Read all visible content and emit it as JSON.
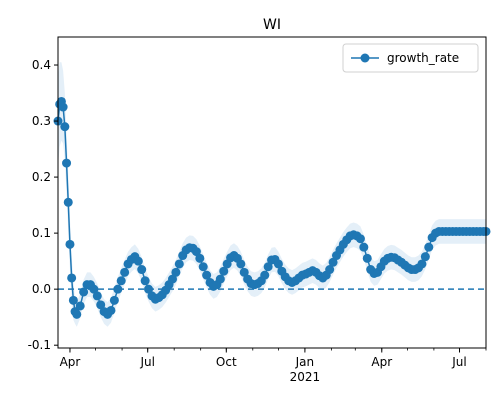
{
  "chart_data": {
    "type": "line",
    "title": "WI",
    "xlabel": "",
    "ylabel": "",
    "x_axis": {
      "type": "date",
      "range": [
        "2020-03-18",
        "2021-08-01"
      ],
      "ticks": [
        {
          "date": "2020-04-01",
          "label": "Apr"
        },
        {
          "date": "2020-07-01",
          "label": "Jul"
        },
        {
          "date": "2020-10-01",
          "label": "Oct"
        },
        {
          "date": "2021-01-01",
          "label": "Jan",
          "sublabel": "2021"
        },
        {
          "date": "2021-04-01",
          "label": "Apr"
        },
        {
          "date": "2021-07-01",
          "label": "Jul"
        }
      ]
    },
    "ylim": [
      -0.105,
      0.45
    ],
    "yticks": [
      "-0.1",
      "0.0",
      "0.1",
      "0.2",
      "0.3",
      "0.4"
    ],
    "reference_line": {
      "y": 0.0,
      "style": "dashed",
      "color": "#1f77b4"
    },
    "legend": {
      "position": "top-right",
      "entries": [
        "growth_rate"
      ]
    },
    "colors": {
      "series": "#1f77b4",
      "band": "#dbe9f6",
      "axis": "#000000"
    },
    "series": [
      {
        "name": "growth_rate",
        "marker": "circle",
        "points": [
          [
            "2020-03-18",
            0.3
          ],
          [
            "2020-03-20",
            0.33
          ],
          [
            "2020-03-22",
            0.335
          ],
          [
            "2020-03-24",
            0.325
          ],
          [
            "2020-03-26",
            0.29
          ],
          [
            "2020-03-28",
            0.225
          ],
          [
            "2020-03-30",
            0.155
          ],
          [
            "2020-04-01",
            0.08
          ],
          [
            "2020-04-03",
            0.02
          ],
          [
            "2020-04-05",
            -0.02
          ],
          [
            "2020-04-07",
            -0.04
          ],
          [
            "2020-04-09",
            -0.045
          ],
          [
            "2020-04-13",
            -0.03
          ],
          [
            "2020-04-17",
            -0.005
          ],
          [
            "2020-04-21",
            0.008
          ],
          [
            "2020-04-25",
            0.008
          ],
          [
            "2020-04-29",
            0.0
          ],
          [
            "2020-05-03",
            -0.012
          ],
          [
            "2020-05-07",
            -0.028
          ],
          [
            "2020-05-11",
            -0.04
          ],
          [
            "2020-05-15",
            -0.045
          ],
          [
            "2020-05-19",
            -0.038
          ],
          [
            "2020-05-23",
            -0.02
          ],
          [
            "2020-05-27",
            0.0
          ],
          [
            "2020-05-31",
            0.015
          ],
          [
            "2020-06-04",
            0.03
          ],
          [
            "2020-06-08",
            0.045
          ],
          [
            "2020-06-12",
            0.053
          ],
          [
            "2020-06-16",
            0.058
          ],
          [
            "2020-06-20",
            0.05
          ],
          [
            "2020-06-24",
            0.035
          ],
          [
            "2020-06-28",
            0.015
          ],
          [
            "2020-07-02",
            0.0
          ],
          [
            "2020-07-06",
            -0.012
          ],
          [
            "2020-07-10",
            -0.018
          ],
          [
            "2020-07-14",
            -0.015
          ],
          [
            "2020-07-18",
            -0.01
          ],
          [
            "2020-07-22",
            -0.002
          ],
          [
            "2020-07-26",
            0.008
          ],
          [
            "2020-07-30",
            0.018
          ],
          [
            "2020-08-03",
            0.03
          ],
          [
            "2020-08-07",
            0.045
          ],
          [
            "2020-08-11",
            0.06
          ],
          [
            "2020-08-15",
            0.07
          ],
          [
            "2020-08-19",
            0.074
          ],
          [
            "2020-08-23",
            0.073
          ],
          [
            "2020-08-27",
            0.067
          ],
          [
            "2020-08-31",
            0.055
          ],
          [
            "2020-09-04",
            0.04
          ],
          [
            "2020-09-08",
            0.025
          ],
          [
            "2020-09-12",
            0.012
          ],
          [
            "2020-09-16",
            0.005
          ],
          [
            "2020-09-20",
            0.008
          ],
          [
            "2020-09-24",
            0.018
          ],
          [
            "2020-09-28",
            0.032
          ],
          [
            "2020-10-02",
            0.045
          ],
          [
            "2020-10-06",
            0.056
          ],
          [
            "2020-10-10",
            0.06
          ],
          [
            "2020-10-14",
            0.055
          ],
          [
            "2020-10-18",
            0.045
          ],
          [
            "2020-10-22",
            0.03
          ],
          [
            "2020-10-26",
            0.018
          ],
          [
            "2020-10-30",
            0.01
          ],
          [
            "2020-11-03",
            0.008
          ],
          [
            "2020-11-07",
            0.01
          ],
          [
            "2020-11-11",
            0.015
          ],
          [
            "2020-11-15",
            0.025
          ],
          [
            "2020-11-19",
            0.04
          ],
          [
            "2020-11-23",
            0.052
          ],
          [
            "2020-11-27",
            0.053
          ],
          [
            "2020-12-01",
            0.045
          ],
          [
            "2020-12-05",
            0.032
          ],
          [
            "2020-12-09",
            0.022
          ],
          [
            "2020-12-13",
            0.015
          ],
          [
            "2020-12-17",
            0.012
          ],
          [
            "2020-12-21",
            0.015
          ],
          [
            "2020-12-25",
            0.02
          ],
          [
            "2020-12-29",
            0.025
          ],
          [
            "2021-01-02",
            0.027
          ],
          [
            "2021-01-06",
            0.03
          ],
          [
            "2021-01-10",
            0.033
          ],
          [
            "2021-01-14",
            0.03
          ],
          [
            "2021-01-18",
            0.024
          ],
          [
            "2021-01-22",
            0.02
          ],
          [
            "2021-01-26",
            0.025
          ],
          [
            "2021-01-30",
            0.035
          ],
          [
            "2021-02-03",
            0.048
          ],
          [
            "2021-02-07",
            0.06
          ],
          [
            "2021-02-11",
            0.07
          ],
          [
            "2021-02-15",
            0.08
          ],
          [
            "2021-02-19",
            0.088
          ],
          [
            "2021-02-23",
            0.095
          ],
          [
            "2021-02-27",
            0.097
          ],
          [
            "2021-03-03",
            0.095
          ],
          [
            "2021-03-07",
            0.09
          ],
          [
            "2021-03-11",
            0.075
          ],
          [
            "2021-03-15",
            0.055
          ],
          [
            "2021-03-19",
            0.035
          ],
          [
            "2021-03-23",
            0.028
          ],
          [
            "2021-03-27",
            0.03
          ],
          [
            "2021-03-31",
            0.04
          ],
          [
            "2021-04-04",
            0.05
          ],
          [
            "2021-04-08",
            0.055
          ],
          [
            "2021-04-12",
            0.057
          ],
          [
            "2021-04-16",
            0.056
          ],
          [
            "2021-04-20",
            0.052
          ],
          [
            "2021-04-24",
            0.048
          ],
          [
            "2021-04-28",
            0.043
          ],
          [
            "2021-05-02",
            0.038
          ],
          [
            "2021-05-06",
            0.035
          ],
          [
            "2021-05-10",
            0.035
          ],
          [
            "2021-05-14",
            0.038
          ],
          [
            "2021-05-18",
            0.045
          ],
          [
            "2021-05-22",
            0.058
          ],
          [
            "2021-05-26",
            0.075
          ],
          [
            "2021-05-30",
            0.092
          ],
          [
            "2021-06-03",
            0.1
          ],
          [
            "2021-06-07",
            0.103
          ],
          [
            "2021-06-11",
            0.103
          ],
          [
            "2021-06-15",
            0.103
          ],
          [
            "2021-06-19",
            0.103
          ],
          [
            "2021-06-23",
            0.103
          ],
          [
            "2021-06-27",
            0.103
          ],
          [
            "2021-07-01",
            0.103
          ],
          [
            "2021-07-05",
            0.103
          ],
          [
            "2021-07-09",
            0.103
          ],
          [
            "2021-07-13",
            0.103
          ],
          [
            "2021-07-17",
            0.103
          ],
          [
            "2021-07-21",
            0.103
          ],
          [
            "2021-07-25",
            0.103
          ],
          [
            "2021-07-29",
            0.103
          ],
          [
            "2021-08-01",
            0.103
          ]
        ]
      }
    ]
  }
}
